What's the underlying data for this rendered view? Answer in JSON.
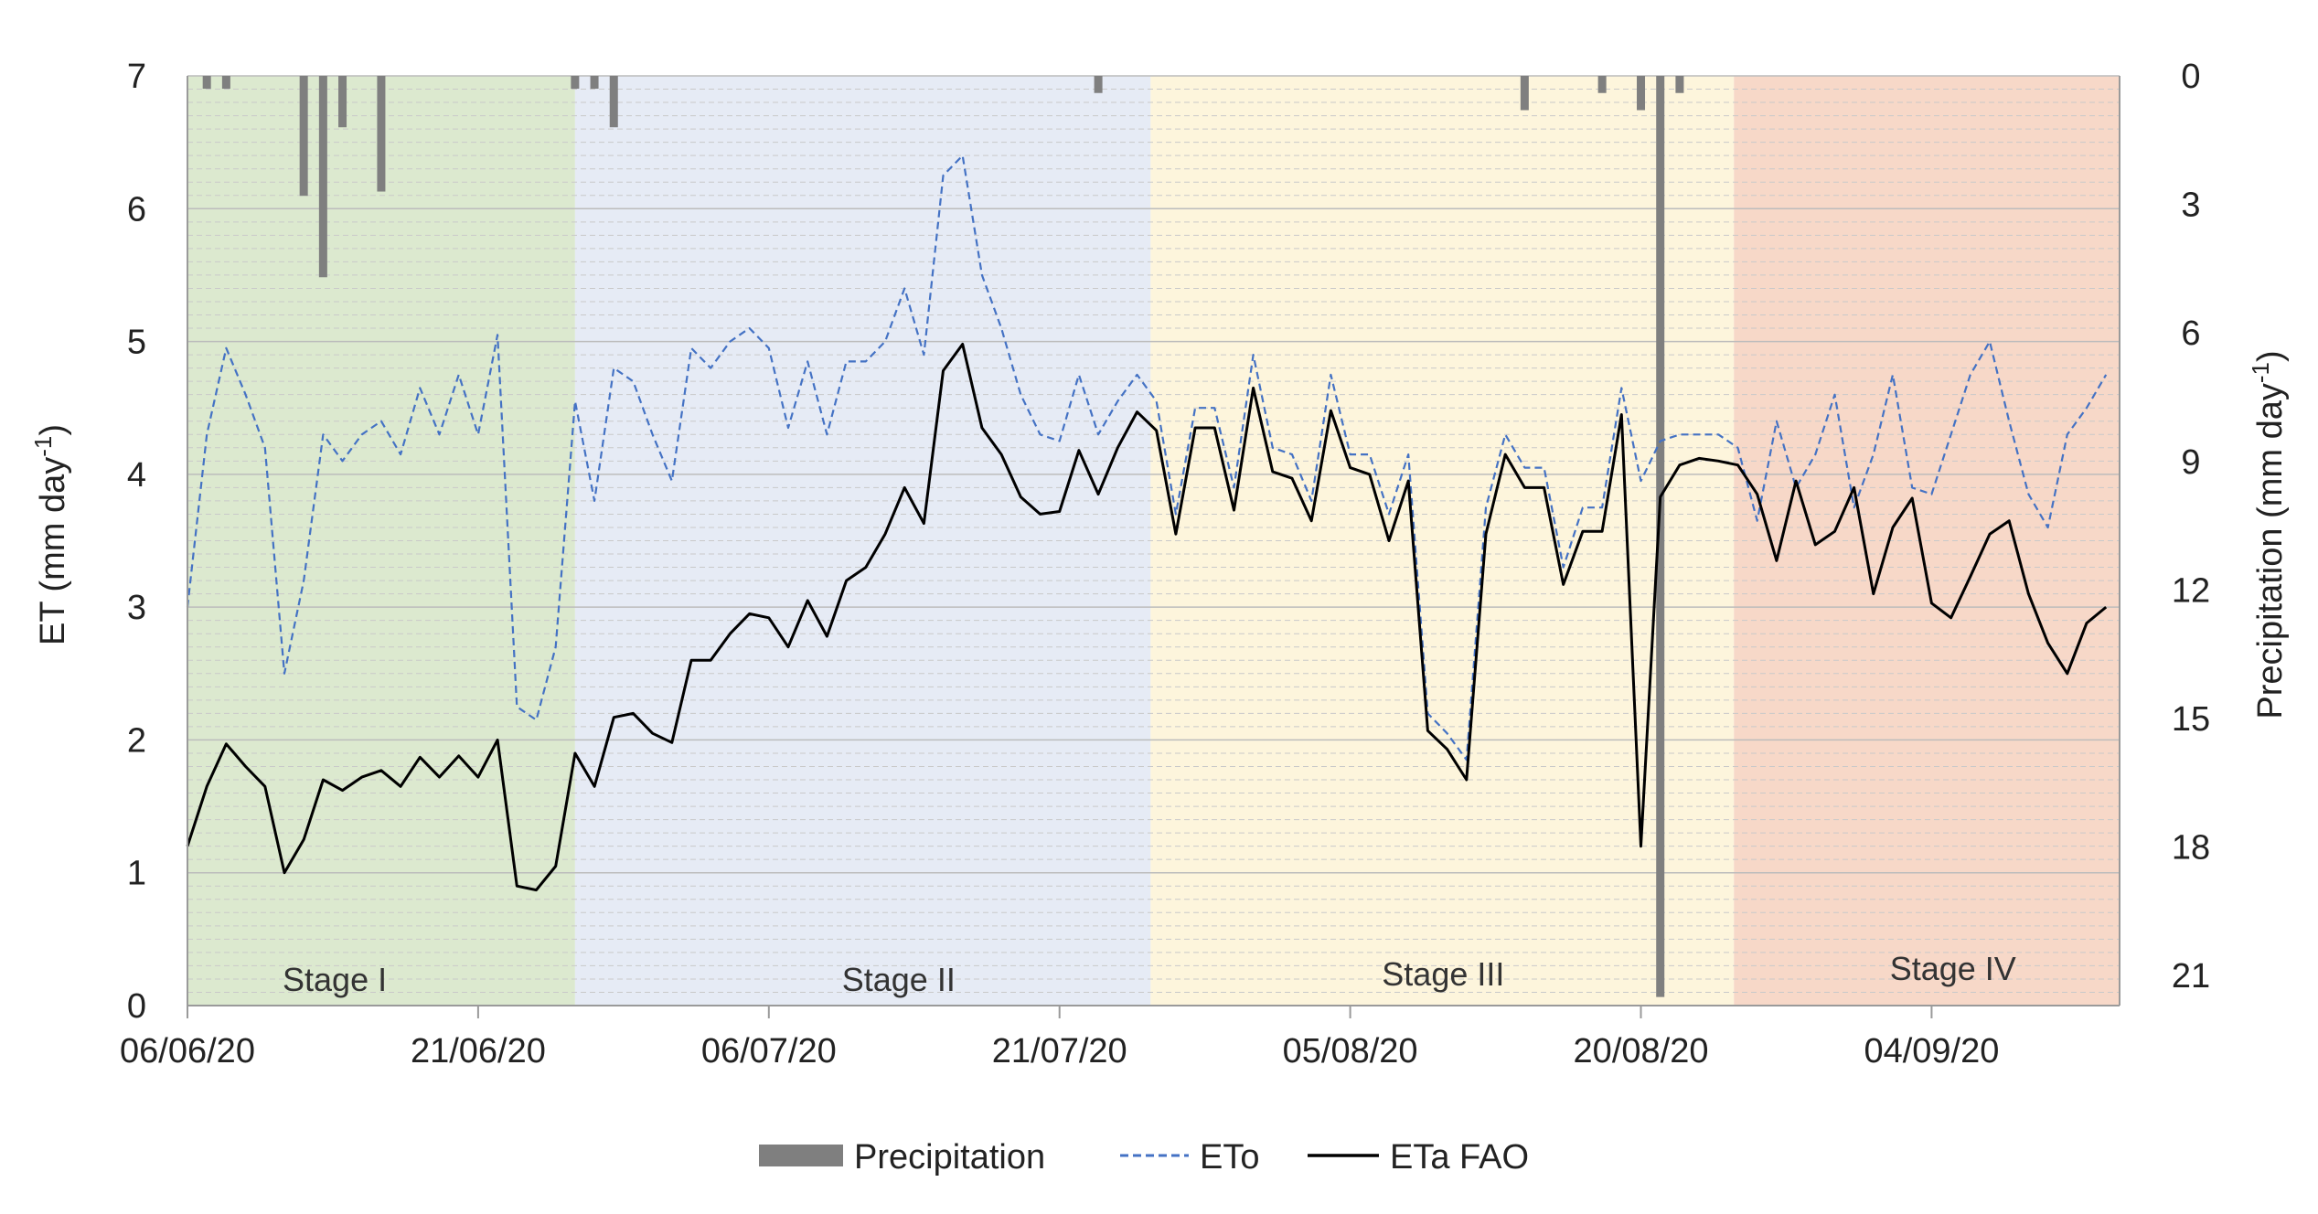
{
  "chart_data": {
    "type": "line",
    "title": "",
    "start_date": "06/06/20",
    "n_days": 100,
    "xlabel": "",
    "x_tick_labels": [
      {
        "day": 0,
        "label": "06/06/20"
      },
      {
        "day": 15,
        "label": "21/06/20"
      },
      {
        "day": 30,
        "label": "06/07/20"
      },
      {
        "day": 45,
        "label": "21/07/20"
      },
      {
        "day": 60,
        "label": "05/08/20"
      },
      {
        "day": 75,
        "label": "20/08/20"
      },
      {
        "day": 90,
        "label": "04/09/20"
      }
    ],
    "y_left": {
      "label": "ET (mm day",
      "label_sup": "-1",
      "label_end": ")",
      "lim": [
        0,
        7
      ],
      "ticks": [
        "0",
        "1",
        "2",
        "3",
        "4",
        "5",
        "6",
        "7"
      ]
    },
    "y_right": {
      "label": "Precipitation (mm day",
      "label_sup": "-1",
      "label_end": ")",
      "lim": [
        0,
        21.7
      ],
      "inverted": true,
      "ticks": [
        "0",
        "3",
        "6",
        "9",
        "12",
        "15",
        "18",
        "21"
      ]
    },
    "grid": true,
    "stages": [
      {
        "name": "Stage I",
        "start": 0,
        "end": 20,
        "color": "#dce9cf"
      },
      {
        "name": "Stage II",
        "start": 20,
        "end": 49.7,
        "color": "#e6ebf5"
      },
      {
        "name": "Stage III",
        "start": 49.7,
        "end": 79.8,
        "color": "#fdf5dc"
      },
      {
        "name": "Stage IV",
        "start": 79.8,
        "end": 99.8,
        "color": "#f7d8c8"
      }
    ],
    "series": [
      {
        "name": "ETo",
        "style": "dashed",
        "color": "#4472c4",
        "x": [
          0,
          1,
          2,
          3,
          4,
          5,
          6,
          7,
          8,
          9,
          10,
          11,
          12,
          13,
          14,
          15,
          16,
          17,
          18,
          19,
          20,
          21,
          22,
          23,
          24,
          25,
          26,
          27,
          28,
          29,
          30,
          31,
          32,
          33,
          34,
          35,
          36,
          37,
          38,
          39,
          40,
          41,
          42,
          43,
          44,
          45,
          46,
          47,
          48,
          49,
          50,
          51,
          52,
          53,
          54,
          55,
          56,
          57,
          58,
          59,
          60,
          61,
          62,
          63,
          64,
          65,
          66,
          67,
          68,
          69,
          70,
          71,
          72,
          73,
          74,
          75,
          76,
          77,
          78,
          79,
          80,
          81,
          82,
          83,
          84,
          85,
          86,
          87,
          88,
          89,
          90,
          91,
          92,
          93,
          94,
          95,
          96,
          97,
          98,
          99
        ],
        "values": [
          3.0,
          4.3,
          4.95,
          4.6,
          4.2,
          2.5,
          3.2,
          4.3,
          4.1,
          4.3,
          4.4,
          4.15,
          4.65,
          4.3,
          4.75,
          4.3,
          5.05,
          2.25,
          2.15,
          2.7,
          4.55,
          3.8,
          4.8,
          4.7,
          4.3,
          3.95,
          4.95,
          4.8,
          5.0,
          5.1,
          4.95,
          4.35,
          4.85,
          4.3,
          4.85,
          4.85,
          5.0,
          5.4,
          4.9,
          6.25,
          6.4,
          5.5,
          5.1,
          4.6,
          4.3,
          4.25,
          4.75,
          4.3,
          4.55,
          4.75,
          4.55,
          3.7,
          4.5,
          4.5,
          3.9,
          4.9,
          4.2,
          4.15,
          3.8,
          4.75,
          4.15,
          4.15,
          3.7,
          4.15,
          2.2,
          2.05,
          1.85,
          3.75,
          4.3,
          4.05,
          4.05,
          3.3,
          3.75,
          3.75,
          4.65,
          3.95,
          4.25,
          4.3,
          4.3,
          4.3,
          4.2,
          3.65,
          4.4,
          3.9,
          4.15,
          4.6,
          3.75,
          4.15,
          4.75,
          3.9,
          3.85,
          4.3,
          4.75,
          5.0,
          4.4,
          3.85,
          3.6,
          4.3,
          4.5,
          4.75
        ]
      },
      {
        "name": "ETa FAO",
        "style": "solid",
        "color": "#000000",
        "x": [
          0,
          1,
          2,
          3,
          4,
          5,
          6,
          7,
          8,
          9,
          10,
          11,
          12,
          13,
          14,
          15,
          16,
          17,
          18,
          19,
          20,
          21,
          22,
          23,
          24,
          25,
          26,
          27,
          28,
          29,
          30,
          31,
          32,
          33,
          34,
          35,
          36,
          37,
          38,
          39,
          40,
          41,
          42,
          43,
          44,
          45,
          46,
          47,
          48,
          49,
          50,
          51,
          52,
          53,
          54,
          55,
          56,
          57,
          58,
          59,
          60,
          61,
          62,
          63,
          64,
          65,
          66,
          67,
          68,
          69,
          70,
          71,
          72,
          73,
          74,
          75,
          76,
          77,
          78,
          79,
          80,
          81,
          82,
          83,
          84,
          85,
          86,
          87,
          88,
          89,
          90,
          91,
          92,
          93,
          94,
          95,
          96,
          97,
          98,
          99
        ],
        "values": [
          1.2,
          1.65,
          1.97,
          1.8,
          1.65,
          1.0,
          1.25,
          1.7,
          1.62,
          1.72,
          1.77,
          1.65,
          1.87,
          1.72,
          1.88,
          1.72,
          2.0,
          0.9,
          0.87,
          1.05,
          1.9,
          1.65,
          2.17,
          2.2,
          2.05,
          1.98,
          2.6,
          2.6,
          2.8,
          2.95,
          2.92,
          2.7,
          3.05,
          2.78,
          3.2,
          3.3,
          3.55,
          3.9,
          3.63,
          4.78,
          4.98,
          4.35,
          4.15,
          3.83,
          3.7,
          3.72,
          4.18,
          3.85,
          4.2,
          4.47,
          4.33,
          3.55,
          4.35,
          4.35,
          3.73,
          4.65,
          4.02,
          3.97,
          3.65,
          4.48,
          4.05,
          4.0,
          3.5,
          3.95,
          2.07,
          1.93,
          1.7,
          3.55,
          4.15,
          3.9,
          3.9,
          3.17,
          3.57,
          3.57,
          4.45,
          1.2,
          3.83,
          4.07,
          4.12,
          4.1,
          4.07,
          3.85,
          3.35,
          3.95,
          3.47,
          3.57,
          3.9,
          3.1,
          3.6,
          3.82,
          3.03,
          2.92,
          3.23,
          3.55,
          3.65,
          3.1,
          2.73,
          2.5,
          2.88,
          3.0
        ]
      },
      {
        "name": "Precipitation",
        "type": "bar",
        "axis": "right",
        "color": "#7f7f7f",
        "x": [
          1,
          2,
          6,
          7,
          8,
          10,
          20,
          21,
          22,
          47,
          69,
          73,
          75,
          76,
          77
        ],
        "values": [
          0.3,
          0.3,
          2.8,
          4.7,
          1.2,
          2.7,
          0.3,
          0.3,
          1.2,
          0.4,
          0.8,
          0.4,
          0.8,
          21.5,
          0.4
        ]
      }
    ],
    "legend": {
      "position": "bottom",
      "entries": [
        "Precipitation",
        "ETo",
        "ETa FAO"
      ]
    }
  }
}
